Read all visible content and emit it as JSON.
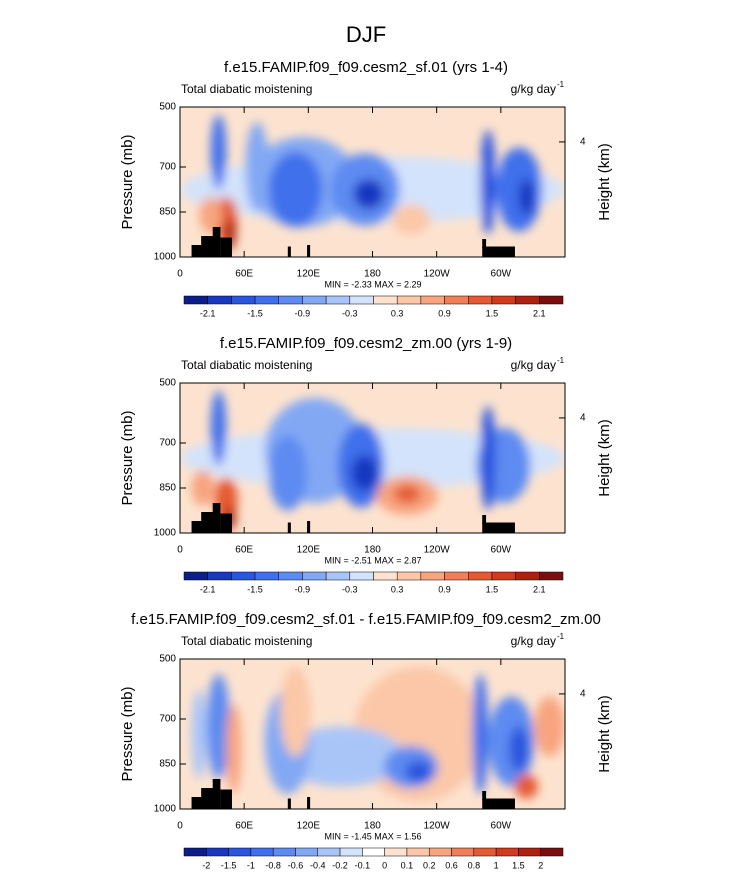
{
  "suptitle": "DJF",
  "chart_data": [
    {
      "type": "contour",
      "title": "f.e15.FAMIP.f09_f09.cesm2_sf.01 (yrs 1-4)",
      "left_string": "Total diabatic moistening",
      "units": "g/kg day",
      "units_exponent": "-1",
      "ylabel": "Pressure (mb)",
      "y2label": "Height (km)",
      "ylim": [
        1000,
        500
      ],
      "yticks": [
        500,
        700,
        850,
        1000
      ],
      "y2ticks": [
        4
      ],
      "xlim": [
        0,
        360
      ],
      "xticks": [
        0,
        {
          "value": 60,
          "label": "60E"
        },
        {
          "value": 120,
          "label": "120E"
        },
        180,
        {
          "value": 240,
          "label": "120W"
        },
        {
          "value": 300,
          "label": "60W"
        }
      ],
      "stats": "MIN = -2.33  MAX =  2.29",
      "colorbar": {
        "colors": [
          "#0b1e8a",
          "#1838c0",
          "#2a55de",
          "#3f6fec",
          "#5d8bf1",
          "#82a8f4",
          "#a9c5f8",
          "#d3e3fb",
          "#fde3cf",
          "#fbc7a8",
          "#f7a47f",
          "#f07f58",
          "#e55a33",
          "#d3391b",
          "#ad210e",
          "#7a0d0d"
        ],
        "labels": [
          -2.1,
          -1.5,
          -0.9,
          -0.3,
          0.3,
          0.9,
          1.5,
          2.1
        ]
      }
    },
    {
      "type": "contour",
      "title": "f.e15.FAMIP.f09_f09.cesm2_zm.00 (yrs 1-9)",
      "left_string": "Total diabatic moistening",
      "units": "g/kg day",
      "units_exponent": "-1",
      "ylabel": "Pressure (mb)",
      "y2label": "Height (km)",
      "ylim": [
        1000,
        500
      ],
      "yticks": [
        500,
        700,
        850,
        1000
      ],
      "y2ticks": [
        4
      ],
      "xlim": [
        0,
        360
      ],
      "xticks": [
        0,
        {
          "value": 60,
          "label": "60E"
        },
        {
          "value": 120,
          "label": "120E"
        },
        180,
        {
          "value": 240,
          "label": "120W"
        },
        {
          "value": 300,
          "label": "60W"
        }
      ],
      "stats": "MIN = -2.51  MAX =  2.87",
      "colorbar": {
        "colors": [
          "#0b1e8a",
          "#1838c0",
          "#2a55de",
          "#3f6fec",
          "#5d8bf1",
          "#82a8f4",
          "#a9c5f8",
          "#d3e3fb",
          "#fde3cf",
          "#fbc7a8",
          "#f7a47f",
          "#f07f58",
          "#e55a33",
          "#d3391b",
          "#ad210e",
          "#7a0d0d"
        ],
        "labels": [
          -2.1,
          -1.5,
          -0.9,
          -0.3,
          0.3,
          0.9,
          1.5,
          2.1
        ]
      }
    },
    {
      "type": "contour",
      "title": "f.e15.FAMIP.f09_f09.cesm2_sf.01 - f.e15.FAMIP.f09_f09.cesm2_zm.00",
      "left_string": "Total diabatic moistening",
      "units": "g/kg day",
      "units_exponent": "-1",
      "ylabel": "Pressure (mb)",
      "y2label": "Height (km)",
      "ylim": [
        1000,
        500
      ],
      "yticks": [
        500,
        700,
        850,
        1000
      ],
      "y2ticks": [
        4
      ],
      "xlim": [
        0,
        360
      ],
      "xticks": [
        0,
        {
          "value": 60,
          "label": "60E"
        },
        {
          "value": 120,
          "label": "120E"
        },
        180,
        {
          "value": 240,
          "label": "120W"
        },
        {
          "value": 300,
          "label": "60W"
        }
      ],
      "stats": "MIN = -1.45  MAX =  1.56",
      "colorbar": {
        "colors": [
          "#0b1e8a",
          "#1838c0",
          "#2a55de",
          "#3f6fec",
          "#5d8bf1",
          "#82a8f4",
          "#a9c5f8",
          "#d3e3fb",
          "#ffffff",
          "#fde3cf",
          "#fbc7a8",
          "#f7a47f",
          "#f07f58",
          "#e55a33",
          "#d3391b",
          "#ad210e",
          "#7a0d0d"
        ],
        "labels": [
          -2,
          -1.5,
          -1,
          -0.8,
          -0.6,
          -0.4,
          -0.2,
          -0.1,
          0,
          0.1,
          0.2,
          0.6,
          0.8,
          1,
          1.5,
          2
        ]
      }
    }
  ]
}
